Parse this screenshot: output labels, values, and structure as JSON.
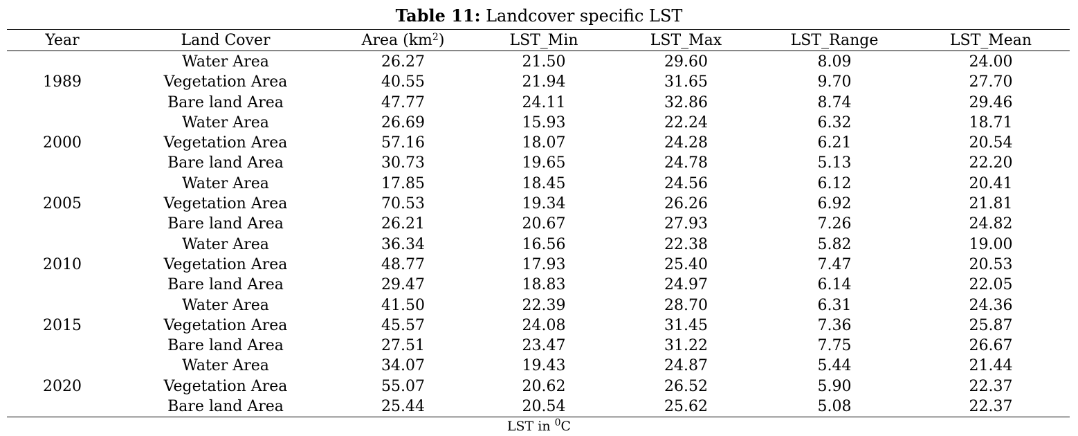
{
  "caption": {
    "label": "Table 11:",
    "text": " Landcover specific LST"
  },
  "columns": {
    "year": "Year",
    "land_cover": "Land Cover",
    "area": "Area (km",
    "area_sup": "2",
    "area_close": ")",
    "lst_min": "LST_Min",
    "lst_max": "LST_Max",
    "lst_range": "LST_Range",
    "lst_mean": "LST_Mean"
  },
  "rows": [
    {
      "year": "",
      "cover": "Water Area",
      "area": "26.27",
      "min": "21.50",
      "max": "29.60",
      "range": "8.09",
      "mean": "24.00"
    },
    {
      "year": "1989",
      "cover": "Vegetation Area",
      "area": "40.55",
      "min": "21.94",
      "max": "31.65",
      "range": "9.70",
      "mean": "27.70"
    },
    {
      "year": "",
      "cover": "Bare land Area",
      "area": "47.77",
      "min": "24.11",
      "max": "32.86",
      "range": "8.74",
      "mean": "29.46"
    },
    {
      "year": "",
      "cover": "Water Area",
      "area": "26.69",
      "min": "15.93",
      "max": "22.24",
      "range": "6.32",
      "mean": "18.71"
    },
    {
      "year": "2000",
      "cover": "Vegetation Area",
      "area": "57.16",
      "min": "18.07",
      "max": "24.28",
      "range": "6.21",
      "mean": "20.54"
    },
    {
      "year": "",
      "cover": "Bare land Area",
      "area": "30.73",
      "min": "19.65",
      "max": "24.78",
      "range": "5.13",
      "mean": "22.20"
    },
    {
      "year": "",
      "cover": "Water Area",
      "area": "17.85",
      "min": "18.45",
      "max": "24.56",
      "range": "6.12",
      "mean": "20.41"
    },
    {
      "year": "2005",
      "cover": "Vegetation Area",
      "area": "70.53",
      "min": "19.34",
      "max": "26.26",
      "range": "6.92",
      "mean": "21.81"
    },
    {
      "year": "",
      "cover": "Bare land Area",
      "area": "26.21",
      "min": "20.67",
      "max": "27.93",
      "range": "7.26",
      "mean": "24.82"
    },
    {
      "year": "",
      "cover": "Water Area",
      "area": "36.34",
      "min": "16.56",
      "max": "22.38",
      "range": "5.82",
      "mean": "19.00"
    },
    {
      "year": "2010",
      "cover": "Vegetation Area",
      "area": "48.77",
      "min": "17.93",
      "max": "25.40",
      "range": "7.47",
      "mean": "20.53"
    },
    {
      "year": "",
      "cover": "Bare land Area",
      "area": "29.47",
      "min": "18.83",
      "max": "24.97",
      "range": "6.14",
      "mean": "22.05"
    },
    {
      "year": "",
      "cover": "Water Area",
      "area": "41.50",
      "min": "22.39",
      "max": "28.70",
      "range": "6.31",
      "mean": "24.36"
    },
    {
      "year": "2015",
      "cover": "Vegetation Area",
      "area": "45.57",
      "min": "24.08",
      "max": "31.45",
      "range": "7.36",
      "mean": "25.87"
    },
    {
      "year": "",
      "cover": "Bare land Area",
      "area": "27.51",
      "min": "23.47",
      "max": "31.22",
      "range": "7.75",
      "mean": "26.67"
    },
    {
      "year": "",
      "cover": "Water Area",
      "area": "34.07",
      "min": "19.43",
      "max": "24.87",
      "range": "5.44",
      "mean": "21.44"
    },
    {
      "year": "2020",
      "cover": "Vegetation Area",
      "area": "55.07",
      "min": "20.62",
      "max": "26.52",
      "range": "5.90",
      "mean": "22.37"
    },
    {
      "year": "",
      "cover": "Bare land Area",
      "area": "25.44",
      "min": "20.54",
      "max": "25.62",
      "range": "5.08",
      "mean": "22.37"
    }
  ],
  "footnote": {
    "text": "LST in ",
    "sup": "0",
    "unit": "C"
  }
}
